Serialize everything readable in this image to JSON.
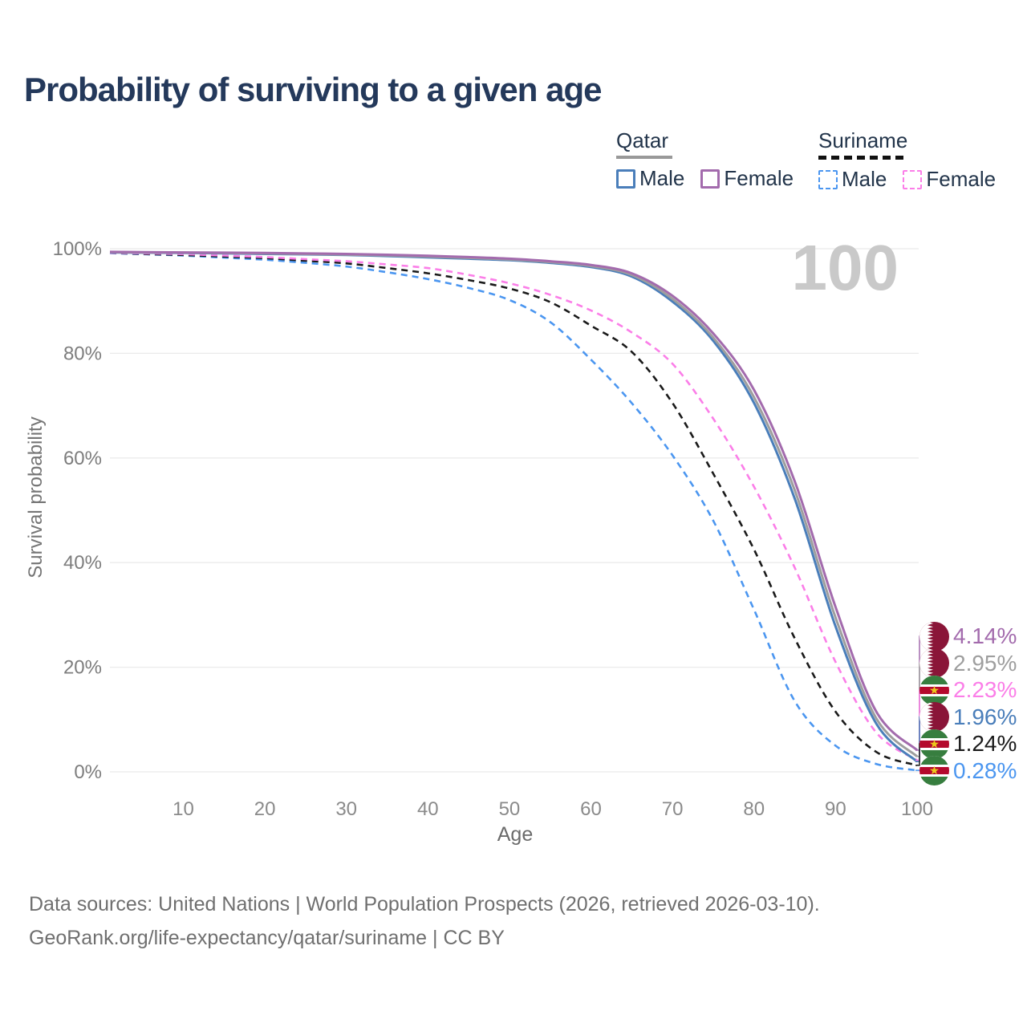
{
  "title": "Probability of surviving to a given age",
  "watermark": "100",
  "legend": {
    "groups": [
      {
        "label": "Qatar",
        "line_style": "solid",
        "underline_color": "#999999",
        "items": [
          {
            "label": "Male",
            "color": "#4a7eba",
            "style": "solid"
          },
          {
            "label": "Female",
            "color": "#a36bad",
            "style": "solid"
          }
        ]
      },
      {
        "label": "Suriname",
        "line_style": "dashed",
        "underline_color": "#111111",
        "items": [
          {
            "label": "Male",
            "color": "#4b96f0",
            "style": "dashed"
          },
          {
            "label": "Female",
            "color": "#fb7ee8",
            "style": "dashed"
          }
        ]
      }
    ]
  },
  "chart_data": {
    "type": "line",
    "title": "Probability of surviving to a given age",
    "xlabel": "Age",
    "ylabel": "Survival probability",
    "xlim": [
      1,
      100
    ],
    "ylim": [
      0,
      100
    ],
    "grid": "horizontal-only",
    "legend_position": "top-right",
    "hover_age": "100",
    "xticks": [
      10,
      20,
      30,
      40,
      50,
      60,
      70,
      80,
      90,
      100
    ],
    "ytick_labels": [
      "0%",
      "20%",
      "40%",
      "60%",
      "80%",
      "100%"
    ],
    "ages": [
      1,
      5,
      10,
      15,
      20,
      25,
      30,
      35,
      40,
      45,
      50,
      55,
      60,
      65,
      70,
      75,
      80,
      85,
      90,
      95,
      100
    ],
    "series": [
      {
        "name": "Qatar — Female",
        "slug": "qatar-female",
        "country": "qatar",
        "sex": "Female",
        "color": "#a36bad",
        "dash": "solid",
        "end_label": "4.14%",
        "values": [
          99.4,
          99.35,
          99.3,
          99.25,
          99.2,
          99.1,
          99.0,
          98.85,
          98.65,
          98.4,
          98.1,
          97.6,
          96.9,
          95.3,
          91.0,
          83.8,
          73.0,
          55.5,
          31.5,
          11.5,
          4.14
        ]
      },
      {
        "name": "Qatar — Total",
        "slug": "qatar-total",
        "country": "qatar",
        "sex": "Both",
        "color": "#9e9e9e",
        "dash": "solid",
        "end_label": "2.95%",
        "values": [
          99.35,
          99.3,
          99.25,
          99.18,
          99.1,
          99.0,
          98.9,
          98.72,
          98.5,
          98.25,
          97.95,
          97.45,
          96.7,
          95.0,
          90.4,
          83.0,
          71.6,
          53.8,
          29.5,
          10.2,
          2.95
        ]
      },
      {
        "name": "Suriname — Female",
        "slug": "suriname-female",
        "country": "suriname",
        "sex": "Female",
        "color": "#fb7ee8",
        "dash": "dashed",
        "end_label": "2.23%",
        "values": [
          99.2,
          99.1,
          98.95,
          98.7,
          98.4,
          98.0,
          97.6,
          97.0,
          96.3,
          95.0,
          93.4,
          91.2,
          88.2,
          84.0,
          78.0,
          67.5,
          54.5,
          39.0,
          21.0,
          7.5,
          2.23
        ]
      },
      {
        "name": "Qatar — Male",
        "slug": "qatar-male",
        "country": "qatar",
        "sex": "Male",
        "color": "#4a7eba",
        "dash": "solid",
        "end_label": "1.96%",
        "values": [
          99.3,
          99.25,
          99.2,
          99.12,
          99.0,
          98.92,
          98.8,
          98.6,
          98.35,
          98.1,
          97.8,
          97.3,
          96.5,
          94.7,
          89.9,
          82.4,
          70.5,
          52.2,
          27.8,
          9.2,
          1.96
        ]
      },
      {
        "name": "Suriname — Total",
        "slug": "suriname-total",
        "country": "suriname",
        "sex": "Both",
        "color": "#1a1a1a",
        "dash": "dashed",
        "end_label": "1.24%",
        "values": [
          99.2,
          99.0,
          98.8,
          98.5,
          98.2,
          97.7,
          97.2,
          96.3,
          95.3,
          94.0,
          92.4,
          89.8,
          85.3,
          80.3,
          70.5,
          57.0,
          42.5,
          25.5,
          11.5,
          3.8,
          1.24
        ]
      },
      {
        "name": "Suriname — Male",
        "slug": "suriname-male",
        "country": "suriname",
        "sex": "Male",
        "color": "#4b96f0",
        "dash": "dashed",
        "end_label": "0.28%",
        "values": [
          99.15,
          98.95,
          98.7,
          98.3,
          97.9,
          97.3,
          96.6,
          95.5,
          94.2,
          92.5,
          90.2,
          86.0,
          78.8,
          70.5,
          60.5,
          48.0,
          31.0,
          13.5,
          5.0,
          1.5,
          0.28
        ]
      }
    ],
    "flag_colors": {
      "qatar_maroon": "#8a1538",
      "suriname_green": "#377e3f",
      "suriname_red": "#b40a2d",
      "suriname_star": "#ecc81d"
    }
  },
  "footer": {
    "line1": "Data sources: United Nations | World Population Prospects (2026, retrieved 2026-03-10).",
    "line2": "GeoRank.org/life-expectancy/qatar/suriname | CC BY"
  }
}
